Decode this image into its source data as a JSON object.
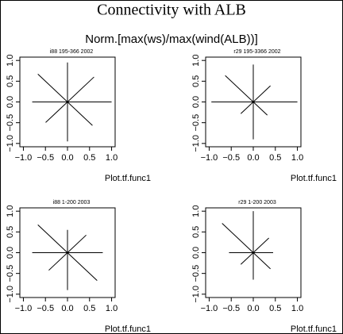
{
  "title": "Connectivity with ALB",
  "subtitle": "Norm.[max(ws)/max(wind(ALB))]",
  "chart_data": [
    {
      "type": "star",
      "title": "i88 195-366 2002",
      "x_label": "Plot.tf.func1",
      "values": [
        1.0,
        0.85,
        0.95,
        0.95,
        0.8,
        0.7,
        0.95,
        0.8
      ],
      "xlim": [
        -1.08,
        1.08
      ],
      "ylim": [
        -1.08,
        1.08
      ],
      "xticks": [
        {
          "value": -1,
          "label": "−1.0"
        },
        {
          "value": -0.5,
          "label": "−0.5"
        },
        {
          "value": 0,
          "label": "0.0"
        },
        0.5,
        {
          "value": 1,
          "label": "1.0"
        }
      ],
      "yticks": [
        {
          "value": -1,
          "label": "−1.0"
        },
        {
          "value": -0.5,
          "label": "−0.5"
        },
        {
          "value": 0,
          "label": "0.0"
        },
        0.5,
        {
          "value": 1,
          "label": "1.0"
        }
      ],
      "color": "#000000"
    },
    {
      "type": "star",
      "title": "r29 195-3366 2002",
      "x_label": "Plot.tf.func1",
      "values": [
        1.0,
        0.55,
        0.9,
        0.9,
        0.95,
        0.4,
        0.9,
        0.45
      ],
      "xlim": [
        -1.08,
        1.08
      ],
      "ylim": [
        -1.08,
        1.08
      ],
      "xticks": [
        {
          "value": -1,
          "label": "−1.0"
        },
        {
          "value": -0.5,
          "label": "−0.5"
        },
        {
          "value": 0,
          "label": "0.0"
        },
        0.5,
        {
          "value": 1,
          "label": "1.0"
        }
      ],
      "yticks": [
        {
          "value": -1,
          "label": "−1.0"
        },
        {
          "value": -0.5,
          "label": "−0.5"
        },
        {
          "value": 0,
          "label": "0.0"
        },
        0.5,
        {
          "value": 1,
          "label": "1.0"
        }
      ],
      "color": "#000000"
    },
    {
      "type": "star",
      "title": "i88 1-200 2003",
      "x_label": "Plot.tf.func1",
      "values": [
        0.8,
        0.6,
        0.55,
        0.95,
        0.8,
        0.6,
        0.9,
        0.95
      ],
      "xlim": [
        -1.08,
        1.08
      ],
      "ylim": [
        -1.08,
        1.08
      ],
      "xticks": [
        {
          "value": -1,
          "label": "−1.0"
        },
        {
          "value": -0.5,
          "label": "−0.5"
        },
        {
          "value": 0,
          "label": "0.0"
        },
        0.5,
        {
          "value": 1,
          "label": "1.0"
        }
      ],
      "yticks": [
        {
          "value": -1,
          "label": "−1.0"
        },
        {
          "value": -0.5,
          "label": "−0.5"
        },
        {
          "value": 0,
          "label": "0.0"
        },
        0.5,
        {
          "value": 1,
          "label": "1.0"
        }
      ],
      "color": "#000000"
    },
    {
      "type": "star",
      "title": "r29 1-200 2003",
      "x_label": "Plot.tf.func1",
      "values": [
        0.45,
        0.5,
        1.0,
        1.0,
        0.55,
        0.4,
        0.65,
        0.55
      ],
      "xlim": [
        -1.08,
        1.08
      ],
      "ylim": [
        -1.08,
        1.08
      ],
      "xticks": [
        {
          "value": -1,
          "label": "−1.0"
        },
        {
          "value": -0.5,
          "label": "−0.5"
        },
        {
          "value": 0,
          "label": "0.0"
        },
        0.5,
        {
          "value": 1,
          "label": "1.0"
        }
      ],
      "yticks": [
        {
          "value": -1,
          "label": "−1.0"
        },
        {
          "value": -0.5,
          "label": "−0.5"
        },
        {
          "value": 0,
          "label": "0.0"
        },
        0.5,
        {
          "value": 1,
          "label": "1.0"
        }
      ],
      "color": "#000000"
    }
  ]
}
